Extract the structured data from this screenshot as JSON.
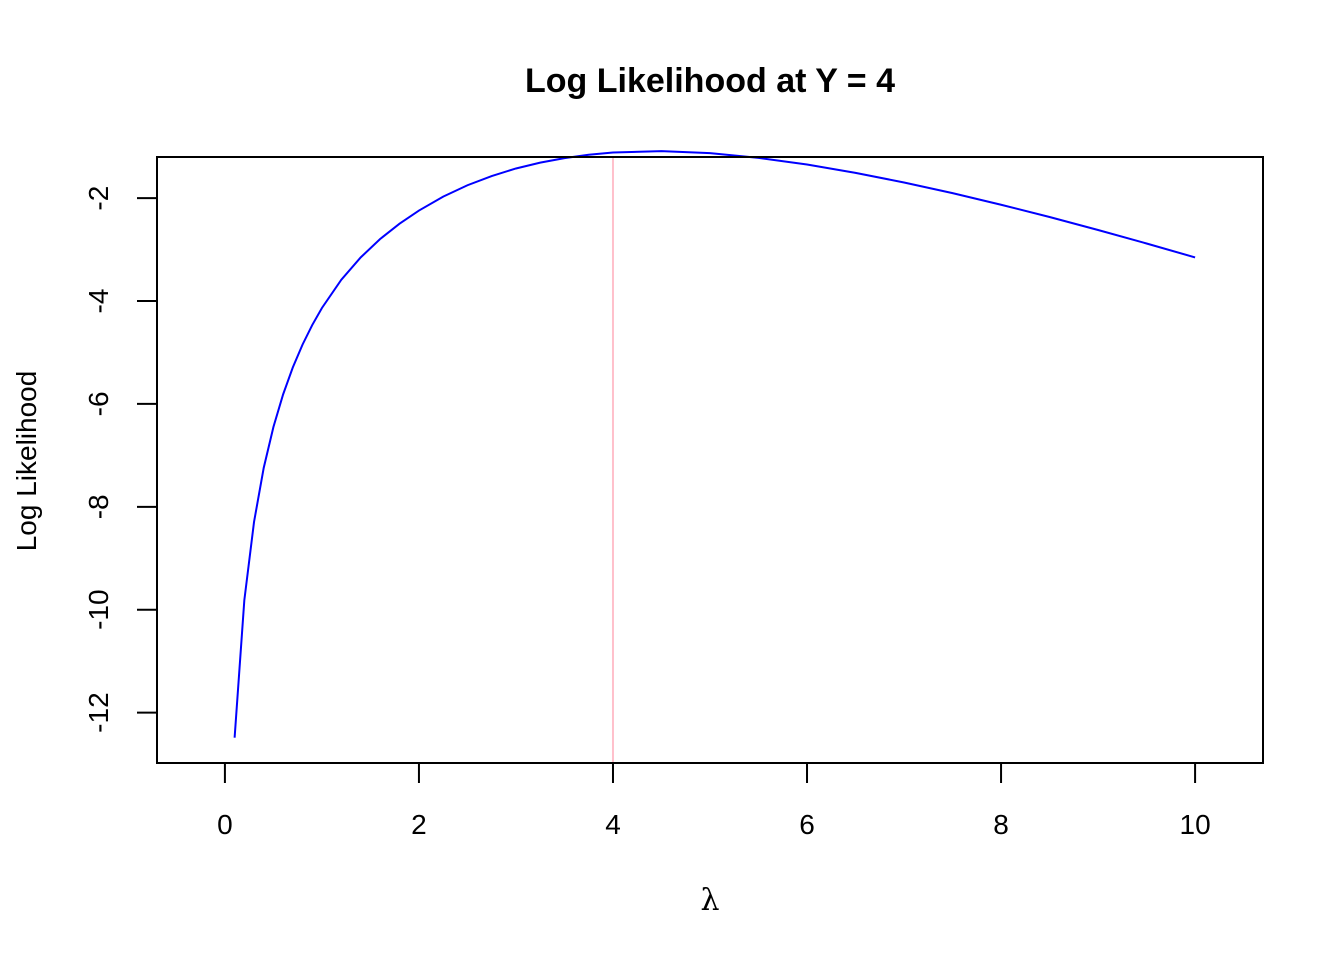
{
  "chart_data": {
    "type": "line",
    "title": "Log Likelihood at Y = 4",
    "xlabel": "λ",
    "ylabel": "Log Likelihood",
    "xlim": [
      -0.7,
      10.7
    ],
    "ylim": [
      -12.98,
      -1.2
    ],
    "x_ticks": [
      0,
      2,
      4,
      6,
      8,
      10
    ],
    "x_tick_labels": [
      "0",
      "2",
      "4",
      "6",
      "8",
      "10"
    ],
    "y_ticks": [
      -12,
      -10,
      -8,
      -6,
      -4,
      -2
    ],
    "y_tick_labels": [
      "-12",
      "-10",
      "-8",
      "-6",
      "-4",
      "-2"
    ],
    "grid": false,
    "series": [
      {
        "color": "#0000ff",
        "x": [
          0.1,
          0.2,
          0.3,
          0.4,
          0.5,
          0.6,
          0.7,
          0.8,
          0.9,
          1.0,
          1.2,
          1.4,
          1.6,
          1.8,
          2.0,
          2.25,
          2.5,
          2.75,
          3.0,
          3.25,
          3.5,
          3.75,
          4.0,
          4.5,
          5.0,
          5.5,
          6.0,
          6.5,
          7.0,
          7.5,
          8.0,
          8.5,
          9.0,
          9.5,
          10.0
        ],
        "values": [
          -12.489,
          -9.817,
          -8.295,
          -7.243,
          -6.448,
          -5.814,
          -5.29,
          -4.847,
          -4.467,
          -4.135,
          -3.586,
          -3.151,
          -2.794,
          -2.496,
          -2.241,
          -1.97,
          -1.749,
          -1.57,
          -1.423,
          -1.31,
          -1.221,
          -1.157,
          -1.113,
          -1.085,
          -1.124,
          -1.217,
          -1.345,
          -1.508,
          -1.695,
          -1.903,
          -2.128,
          -2.367,
          -2.619,
          -2.881,
          -3.152
        ]
      }
    ],
    "vlines": [
      {
        "x": 4,
        "color": "#ffc0cb"
      }
    ]
  }
}
